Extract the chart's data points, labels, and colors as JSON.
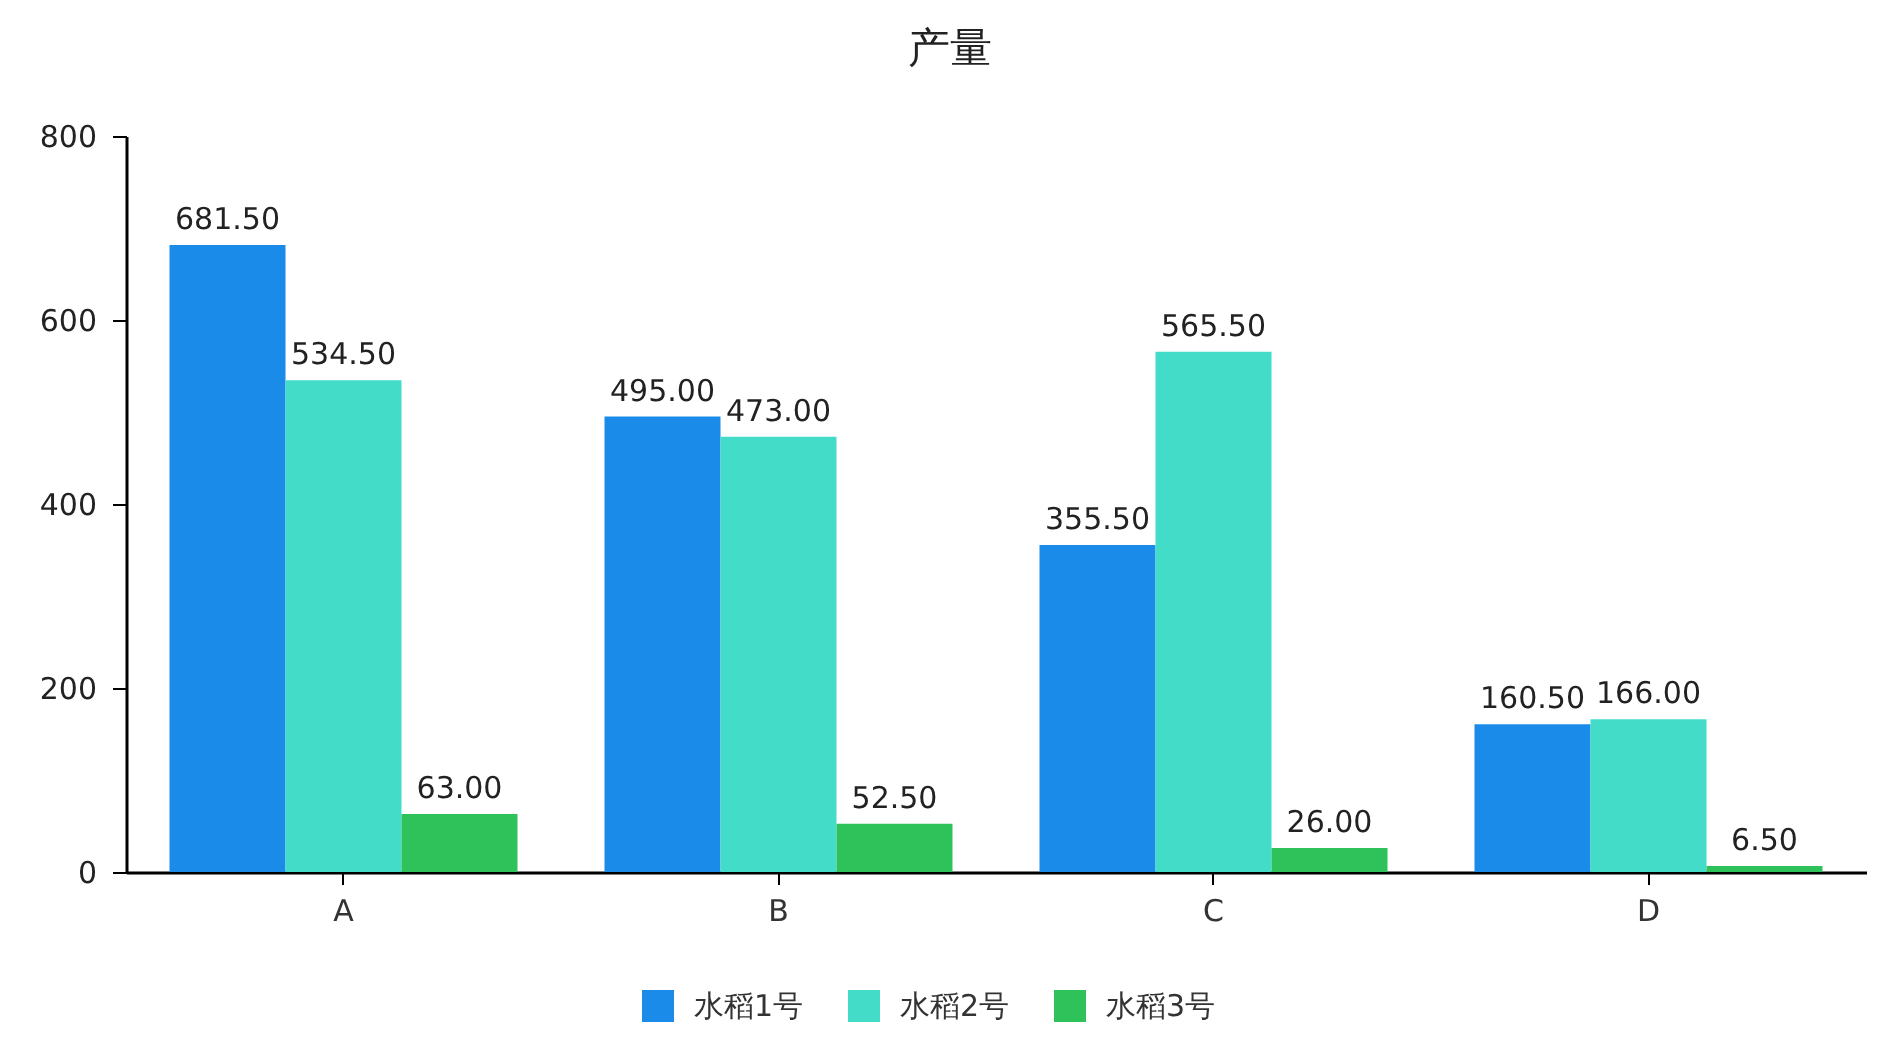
{
  "chart_data": {
    "type": "bar",
    "title": "产量",
    "categories": [
      "A",
      "B",
      "C",
      "D"
    ],
    "series": [
      {
        "name": "水稻1号",
        "color": "#1b8be9",
        "values": [
          681.5,
          495,
          355.5,
          160.5
        ],
        "value_labels": [
          "681.50",
          "495.00",
          "355.50",
          "160.50"
        ]
      },
      {
        "name": "水稻2号",
        "color": "#43dcc8",
        "values": [
          534.5,
          473,
          565.5,
          166
        ],
        "value_labels": [
          "534.50",
          "473.00",
          "565.50",
          "166.00"
        ]
      },
      {
        "name": "水稻3号",
        "color": "#30c25a",
        "values": [
          63,
          52.5,
          26,
          6.5
        ],
        "value_labels": [
          "63.00",
          "52.50",
          "26.00",
          "6.50"
        ]
      }
    ],
    "ylim": [
      0,
      800
    ],
    "yticks": [
      0,
      200,
      400,
      600,
      800
    ],
    "legend": "bottom"
  }
}
